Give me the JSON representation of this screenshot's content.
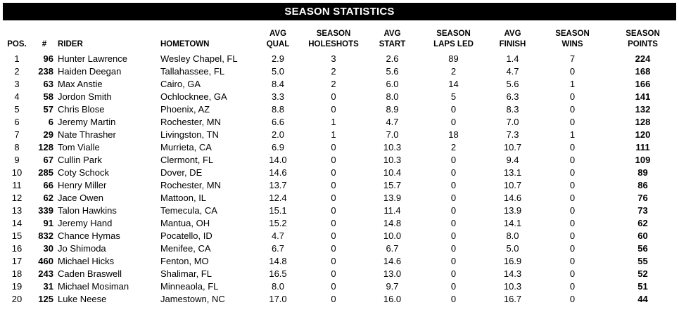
{
  "title": "SEASON STATISTICS",
  "headers": {
    "pos": "POS.",
    "num": "#",
    "rider": "RIDER",
    "hometown": "HOMETOWN",
    "avg_qual": [
      "AVG",
      "QUAL"
    ],
    "holeshots": [
      "SEASON",
      "HOLESHOTS"
    ],
    "avg_start": [
      "AVG",
      "START"
    ],
    "laps_led": [
      "SEASON",
      "LAPS LED"
    ],
    "avg_finish": [
      "AVG",
      "FINISH"
    ],
    "wins": [
      "SEASON",
      "WINS"
    ],
    "points": [
      "SEASON",
      "POINTS"
    ]
  },
  "rows": [
    {
      "pos": "1",
      "num": "96",
      "rider": "Hunter Lawrence",
      "hometown": "Wesley Chapel, FL",
      "avg_qual": "2.9",
      "holeshots": "3",
      "avg_start": "2.6",
      "laps_led": "89",
      "avg_finish": "1.4",
      "wins": "7",
      "points": "224"
    },
    {
      "pos": "2",
      "num": "238",
      "rider": "Haiden Deegan",
      "hometown": "Tallahassee, FL",
      "avg_qual": "5.0",
      "holeshots": "2",
      "avg_start": "5.6",
      "laps_led": "2",
      "avg_finish": "4.7",
      "wins": "0",
      "points": "168"
    },
    {
      "pos": "3",
      "num": "63",
      "rider": "Max Anstie",
      "hometown": "Cairo, GA",
      "avg_qual": "8.4",
      "holeshots": "2",
      "avg_start": "6.0",
      "laps_led": "14",
      "avg_finish": "5.6",
      "wins": "1",
      "points": "166"
    },
    {
      "pos": "4",
      "num": "58",
      "rider": "Jordon Smith",
      "hometown": "Ochlocknee, GA",
      "avg_qual": "3.3",
      "holeshots": "0",
      "avg_start": "8.0",
      "laps_led": "5",
      "avg_finish": "6.3",
      "wins": "0",
      "points": "141"
    },
    {
      "pos": "5",
      "num": "57",
      "rider": "Chris Blose",
      "hometown": "Phoenix, AZ",
      "avg_qual": "8.8",
      "holeshots": "0",
      "avg_start": "8.9",
      "laps_led": "0",
      "avg_finish": "8.3",
      "wins": "0",
      "points": "132"
    },
    {
      "pos": "6",
      "num": "6",
      "rider": "Jeremy Martin",
      "hometown": "Rochester, MN",
      "avg_qual": "6.6",
      "holeshots": "1",
      "avg_start": "4.7",
      "laps_led": "0",
      "avg_finish": "7.0",
      "wins": "0",
      "points": "128"
    },
    {
      "pos": "7",
      "num": "29",
      "rider": "Nate Thrasher",
      "hometown": "Livingston, TN",
      "avg_qual": "2.0",
      "holeshots": "1",
      "avg_start": "7.0",
      "laps_led": "18",
      "avg_finish": "7.3",
      "wins": "1",
      "points": "120"
    },
    {
      "pos": "8",
      "num": "128",
      "rider": "Tom Vialle",
      "hometown": "Murrieta, CA",
      "avg_qual": "6.9",
      "holeshots": "0",
      "avg_start": "10.3",
      "laps_led": "2",
      "avg_finish": "10.7",
      "wins": "0",
      "points": "111"
    },
    {
      "pos": "9",
      "num": "67",
      "rider": "Cullin Park",
      "hometown": "Clermont, FL",
      "avg_qual": "14.0",
      "holeshots": "0",
      "avg_start": "10.3",
      "laps_led": "0",
      "avg_finish": "9.4",
      "wins": "0",
      "points": "109"
    },
    {
      "pos": "10",
      "num": "285",
      "rider": "Coty Schock",
      "hometown": "Dover, DE",
      "avg_qual": "14.6",
      "holeshots": "0",
      "avg_start": "10.4",
      "laps_led": "0",
      "avg_finish": "13.1",
      "wins": "0",
      "points": "89"
    },
    {
      "pos": "11",
      "num": "66",
      "rider": "Henry Miller",
      "hometown": "Rochester, MN",
      "avg_qual": "13.7",
      "holeshots": "0",
      "avg_start": "15.7",
      "laps_led": "0",
      "avg_finish": "10.7",
      "wins": "0",
      "points": "86"
    },
    {
      "pos": "12",
      "num": "62",
      "rider": "Jace Owen",
      "hometown": "Mattoon, IL",
      "avg_qual": "12.4",
      "holeshots": "0",
      "avg_start": "13.9",
      "laps_led": "0",
      "avg_finish": "14.6",
      "wins": "0",
      "points": "76"
    },
    {
      "pos": "13",
      "num": "339",
      "rider": "Talon Hawkins",
      "hometown": "Temecula, CA",
      "avg_qual": "15.1",
      "holeshots": "0",
      "avg_start": "11.4",
      "laps_led": "0",
      "avg_finish": "13.9",
      "wins": "0",
      "points": "73"
    },
    {
      "pos": "14",
      "num": "91",
      "rider": "Jeremy Hand",
      "hometown": "Mantua, OH",
      "avg_qual": "15.2",
      "holeshots": "0",
      "avg_start": "14.8",
      "laps_led": "0",
      "avg_finish": "14.1",
      "wins": "0",
      "points": "62"
    },
    {
      "pos": "15",
      "num": "832",
      "rider": "Chance Hymas",
      "hometown": "Pocatello, ID",
      "avg_qual": "4.7",
      "holeshots": "0",
      "avg_start": "10.0",
      "laps_led": "0",
      "avg_finish": "8.0",
      "wins": "0",
      "points": "60"
    },
    {
      "pos": "16",
      "num": "30",
      "rider": "Jo Shimoda",
      "hometown": "Menifee, CA",
      "avg_qual": "6.7",
      "holeshots": "0",
      "avg_start": "6.7",
      "laps_led": "0",
      "avg_finish": "5.0",
      "wins": "0",
      "points": "56"
    },
    {
      "pos": "17",
      "num": "460",
      "rider": "Michael Hicks",
      "hometown": "Fenton, MO",
      "avg_qual": "14.8",
      "holeshots": "0",
      "avg_start": "14.6",
      "laps_led": "0",
      "avg_finish": "16.9",
      "wins": "0",
      "points": "55"
    },
    {
      "pos": "18",
      "num": "243",
      "rider": "Caden Braswell",
      "hometown": "Shalimar, FL",
      "avg_qual": "16.5",
      "holeshots": "0",
      "avg_start": "13.0",
      "laps_led": "0",
      "avg_finish": "14.3",
      "wins": "0",
      "points": "52"
    },
    {
      "pos": "19",
      "num": "31",
      "rider": "Michael Mosiman",
      "hometown": "Minneaola, FL",
      "avg_qual": "8.0",
      "holeshots": "0",
      "avg_start": "9.7",
      "laps_led": "0",
      "avg_finish": "10.3",
      "wins": "0",
      "points": "51"
    },
    {
      "pos": "20",
      "num": "125",
      "rider": "Luke Neese",
      "hometown": "Jamestown, NC",
      "avg_qual": "17.0",
      "holeshots": "0",
      "avg_start": "16.0",
      "laps_led": "0",
      "avg_finish": "16.7",
      "wins": "0",
      "points": "44"
    }
  ]
}
